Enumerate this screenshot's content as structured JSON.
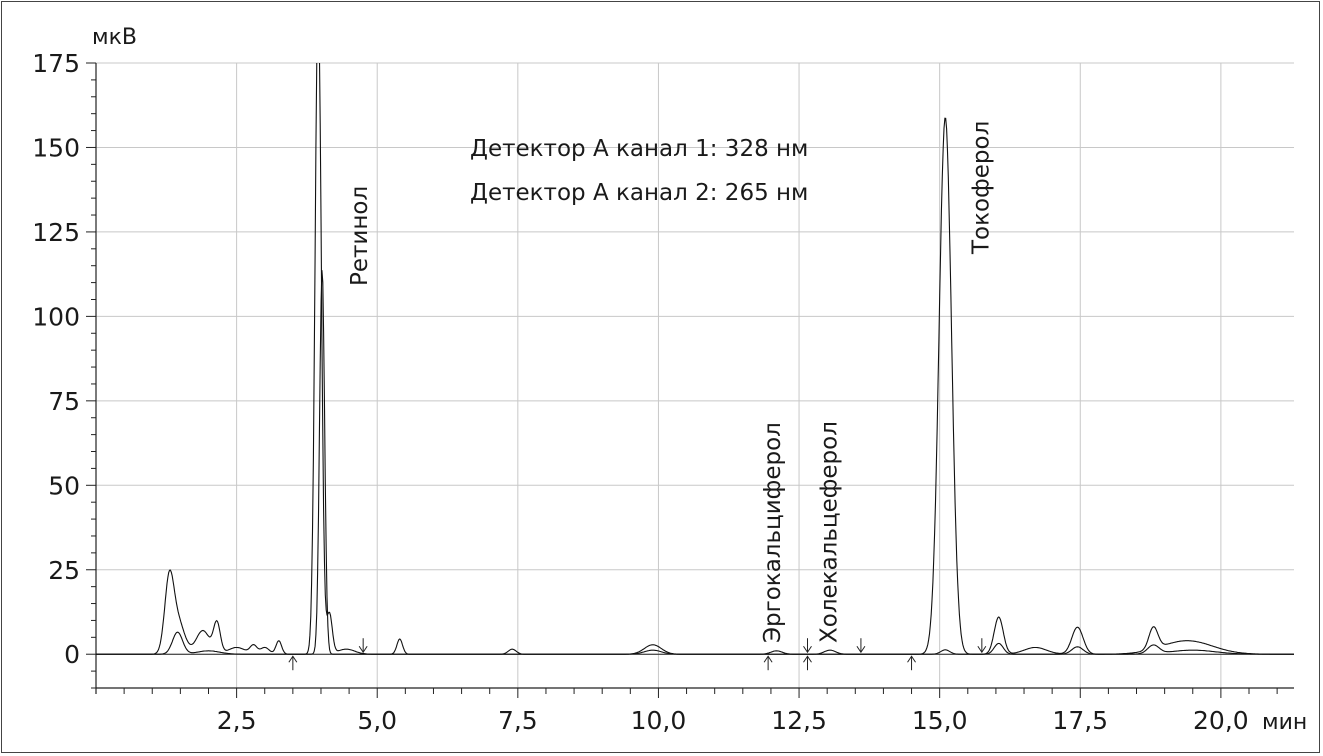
{
  "chart_data": {
    "type": "line",
    "y_unit": "мкВ",
    "x_unit": "мин",
    "xlim": [
      0,
      21.3
    ],
    "ylim": [
      -10,
      175
    ],
    "x_ticks": [
      2.5,
      5.0,
      7.5,
      10.0,
      12.5,
      15.0,
      17.5,
      20.0
    ],
    "x_tick_labels": [
      "2,5",
      "5,0",
      "7,5",
      "10,0",
      "12,5",
      "15,0",
      "17,5",
      "20,0"
    ],
    "y_ticks": [
      0,
      25,
      50,
      75,
      100,
      125,
      150,
      175
    ],
    "y_tick_labels": [
      "0",
      "25",
      "50",
      "75",
      "100",
      "125",
      "150",
      "175"
    ],
    "grid": true,
    "annotations": [
      "Детектор А канал 1: 328 нм",
      "Детектор А канал 2: 265 нм"
    ],
    "peak_labels": [
      {
        "text": "Ретинол",
        "x": 4.85
      },
      {
        "text": "Эргокальциферол",
        "x": 12.2
      },
      {
        "text": "Холекальцеферол",
        "x": 13.2
      },
      {
        "text": "Токоферол",
        "x": 15.9
      }
    ],
    "integration_markers": [
      {
        "x": 3.5,
        "dir": "up"
      },
      {
        "x": 4.75,
        "dir": "down"
      },
      {
        "x": 11.95,
        "dir": "up"
      },
      {
        "x": 12.65,
        "dir": "both"
      },
      {
        "x": 13.6,
        "dir": "down"
      },
      {
        "x": 14.5,
        "dir": "up"
      },
      {
        "x": 15.75,
        "dir": "down"
      }
    ],
    "series": [
      {
        "baseline": 0,
        "peaks": [
          {
            "x": 1.3,
            "h": 20,
            "w": 0.08
          },
          {
            "x": 1.45,
            "h": 10,
            "w": 0.12
          },
          {
            "x": 1.9,
            "h": 7,
            "w": 0.12
          },
          {
            "x": 2.15,
            "h": 9,
            "w": 0.06
          },
          {
            "x": 2.5,
            "h": 2,
            "w": 0.15
          },
          {
            "x": 2.8,
            "h": 2.5,
            "w": 0.06
          },
          {
            "x": 3.0,
            "h": 2,
            "w": 0.08
          },
          {
            "x": 3.25,
            "h": 4,
            "w": 0.05
          },
          {
            "x": 3.95,
            "h": 195,
            "w": 0.055
          },
          {
            "x": 4.15,
            "h": 12,
            "w": 0.05
          },
          {
            "x": 4.45,
            "h": 1.5,
            "w": 0.15
          },
          {
            "x": 5.4,
            "h": 4.5,
            "w": 0.05
          },
          {
            "x": 7.4,
            "h": 1.5,
            "w": 0.07
          },
          {
            "x": 9.9,
            "h": 2.8,
            "w": 0.15
          },
          {
            "x": 12.1,
            "h": 1,
            "w": 0.1
          },
          {
            "x": 13.05,
            "h": 1.2,
            "w": 0.1
          },
          {
            "x": 15.1,
            "h": 159,
            "w": 0.11
          },
          {
            "x": 16.05,
            "h": 11,
            "w": 0.08
          },
          {
            "x": 16.7,
            "h": 2,
            "w": 0.2
          },
          {
            "x": 17.45,
            "h": 8,
            "w": 0.1
          },
          {
            "x": 18.8,
            "h": 6.5,
            "w": 0.08
          },
          {
            "x": 19.4,
            "h": 4,
            "w": 0.45
          }
        ]
      },
      {
        "baseline": 0,
        "peaks": [
          {
            "x": 1.45,
            "h": 6.5,
            "w": 0.09
          },
          {
            "x": 2.0,
            "h": 1,
            "w": 0.2
          },
          {
            "x": 4.02,
            "h": 114,
            "w": 0.045
          },
          {
            "x": 9.9,
            "h": 1.2,
            "w": 0.15
          },
          {
            "x": 15.1,
            "h": 1.3,
            "w": 0.08
          },
          {
            "x": 16.05,
            "h": 3.2,
            "w": 0.08
          },
          {
            "x": 17.45,
            "h": 2.2,
            "w": 0.1
          },
          {
            "x": 18.8,
            "h": 2.5,
            "w": 0.1
          },
          {
            "x": 19.5,
            "h": 1.2,
            "w": 0.4
          }
        ]
      }
    ]
  }
}
